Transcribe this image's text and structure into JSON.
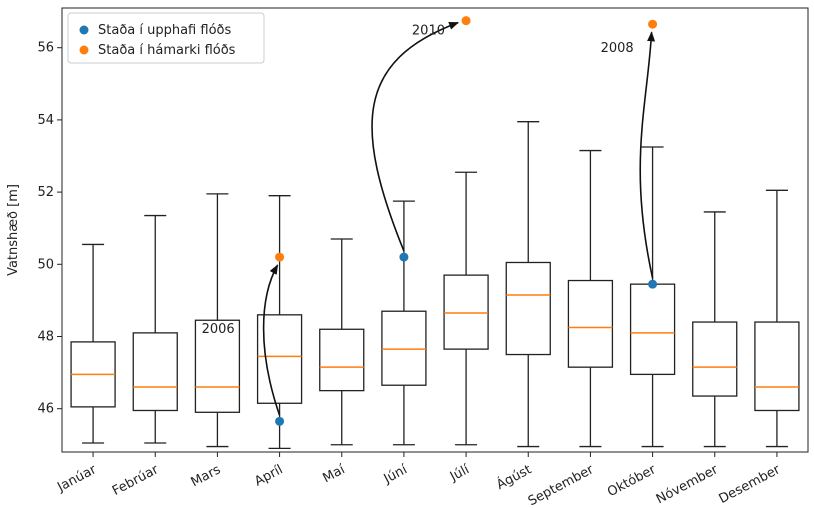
{
  "chart_data": {
    "type": "box",
    "title": "",
    "xlabel": "",
    "ylabel": "Vatnshæð [m]",
    "ylim": [
      44.8,
      57.1
    ],
    "yticks": [
      46,
      48,
      50,
      52,
      54,
      56
    ],
    "categories": [
      "Janúar",
      "Febrúar",
      "Mars",
      "Apríl",
      "Maí",
      "Júní",
      "Júlí",
      "Ágúst",
      "September",
      "Október",
      "Nóvember",
      "Desember"
    ],
    "boxes": [
      {
        "whislo": 45.05,
        "q1": 46.05,
        "med": 46.95,
        "q3": 47.85,
        "whishi": 50.55
      },
      {
        "whislo": 45.05,
        "q1": 45.95,
        "med": 46.6,
        "q3": 48.1,
        "whishi": 51.35
      },
      {
        "whislo": 44.95,
        "q1": 45.9,
        "med": 46.6,
        "q3": 48.45,
        "whishi": 51.95
      },
      {
        "whislo": 44.9,
        "q1": 46.15,
        "med": 47.45,
        "q3": 48.6,
        "whishi": 51.9
      },
      {
        "whislo": 45.0,
        "q1": 46.5,
        "med": 47.15,
        "q3": 48.2,
        "whishi": 50.7
      },
      {
        "whislo": 45.0,
        "q1": 46.65,
        "med": 47.65,
        "q3": 48.7,
        "whishi": 51.75
      },
      {
        "whislo": 45.0,
        "q1": 47.65,
        "med": 48.65,
        "q3": 49.7,
        "whishi": 52.55
      },
      {
        "whislo": 44.95,
        "q1": 47.5,
        "med": 49.15,
        "q3": 50.05,
        "whishi": 53.95
      },
      {
        "whislo": 44.95,
        "q1": 47.15,
        "med": 48.25,
        "q3": 49.55,
        "whishi": 53.15
      },
      {
        "whislo": 44.95,
        "q1": 46.95,
        "med": 48.1,
        "q3": 49.45,
        "whishi": 53.25
      },
      {
        "whislo": 44.95,
        "q1": 46.35,
        "med": 47.15,
        "q3": 48.4,
        "whishi": 51.45
      },
      {
        "whislo": 44.95,
        "q1": 45.95,
        "med": 46.6,
        "q3": 48.4,
        "whishi": 52.05
      }
    ],
    "series": [
      {
        "name": "Staða í upphafi flóðs",
        "color": "#1f77b4",
        "points": [
          {
            "category": "Apríl",
            "y": 45.65
          },
          {
            "category": "Júní",
            "y": 50.2
          },
          {
            "category": "Október",
            "y": 49.45
          }
        ]
      },
      {
        "name": "Staða í hámarki flóðs",
        "color": "#ff7f0e",
        "points": [
          {
            "category": "Apríl",
            "y": 50.2
          },
          {
            "category": "Júlí",
            "y": 56.75
          },
          {
            "category": "Október",
            "y": 56.65
          }
        ]
      }
    ],
    "annotations": [
      {
        "text": "2006",
        "from": {
          "category": "Apríl",
          "y": 45.65
        },
        "to": {
          "category": "Apríl",
          "y": 50.2
        }
      },
      {
        "text": "2010",
        "from": {
          "category": "Júní",
          "y": 50.2
        },
        "to": {
          "category": "Júlí",
          "y": 56.75
        }
      },
      {
        "text": "2008",
        "from": {
          "category": "Október",
          "y": 49.45
        },
        "to": {
          "category": "Október",
          "y": 56.65
        }
      }
    ],
    "colors": {
      "box": "#222222",
      "median": "#ff7f0e"
    },
    "legend_position": "top-left",
    "grid": false
  }
}
